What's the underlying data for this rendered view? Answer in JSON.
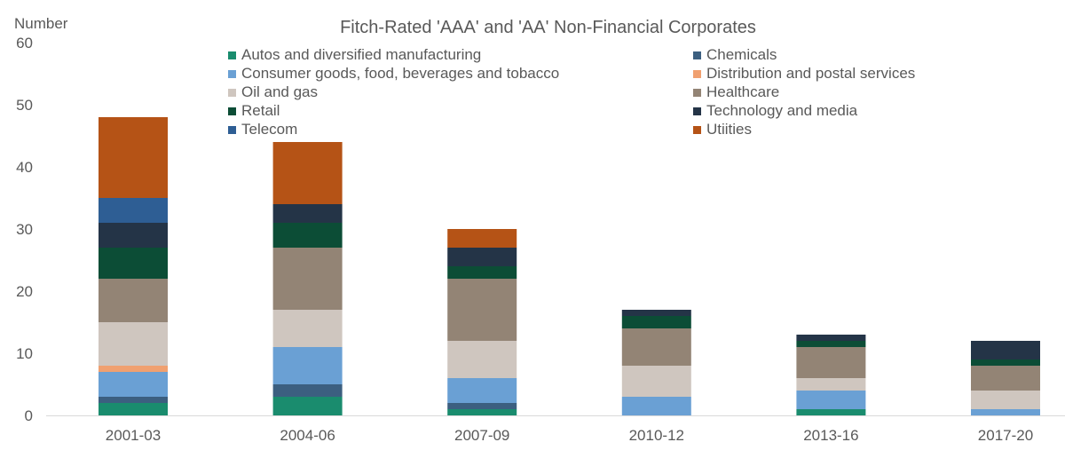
{
  "chart_data": {
    "type": "bar",
    "stacked": true,
    "title": "Fitch-Rated 'AAA' and 'AA' Non-Financial Corporates",
    "ylabel": "Number",
    "xlabel": "",
    "ylim": [
      0,
      60
    ],
    "yticks": [
      0,
      10,
      20,
      30,
      40,
      50,
      60
    ],
    "grid": false,
    "legend_position": "top",
    "categories": [
      "2001-03",
      "2004-06",
      "2007-09",
      "2010-12",
      "2013-16",
      "2017-20"
    ],
    "series": [
      {
        "name": "Autos and diversified manufacturing",
        "color": "#1a8c6e",
        "values": [
          2,
          3,
          1,
          0,
          1,
          0
        ]
      },
      {
        "name": "Chemicals",
        "color": "#3c5f80",
        "values": [
          1,
          2,
          1,
          0,
          0,
          0
        ]
      },
      {
        "name": "Consumer goods, food, beverages and tobacco",
        "color": "#6aa0d4",
        "values": [
          4,
          6,
          4,
          3,
          3,
          1
        ]
      },
      {
        "name": "Distribution and postal services",
        "color": "#f0a070",
        "values": [
          1,
          0,
          0,
          0,
          0,
          0
        ]
      },
      {
        "name": "Oil and gas",
        "color": "#cfc6bf",
        "values": [
          7,
          6,
          6,
          5,
          2,
          3
        ]
      },
      {
        "name": "Healthcare",
        "color": "#938475",
        "values": [
          7,
          10,
          10,
          6,
          5,
          4
        ]
      },
      {
        "name": "Retail",
        "color": "#0c4d36",
        "values": [
          5,
          4,
          2,
          2,
          1,
          1
        ]
      },
      {
        "name": "Technology and media",
        "color": "#243447",
        "values": [
          4,
          3,
          3,
          1,
          1,
          3
        ]
      },
      {
        "name": "Telecom",
        "color": "#2e5e94",
        "values": [
          4,
          0,
          0,
          0,
          0,
          0
        ]
      },
      {
        "name": "Utiities",
        "color": "#b55316",
        "values": [
          13,
          10,
          3,
          0,
          0,
          0
        ]
      }
    ]
  }
}
